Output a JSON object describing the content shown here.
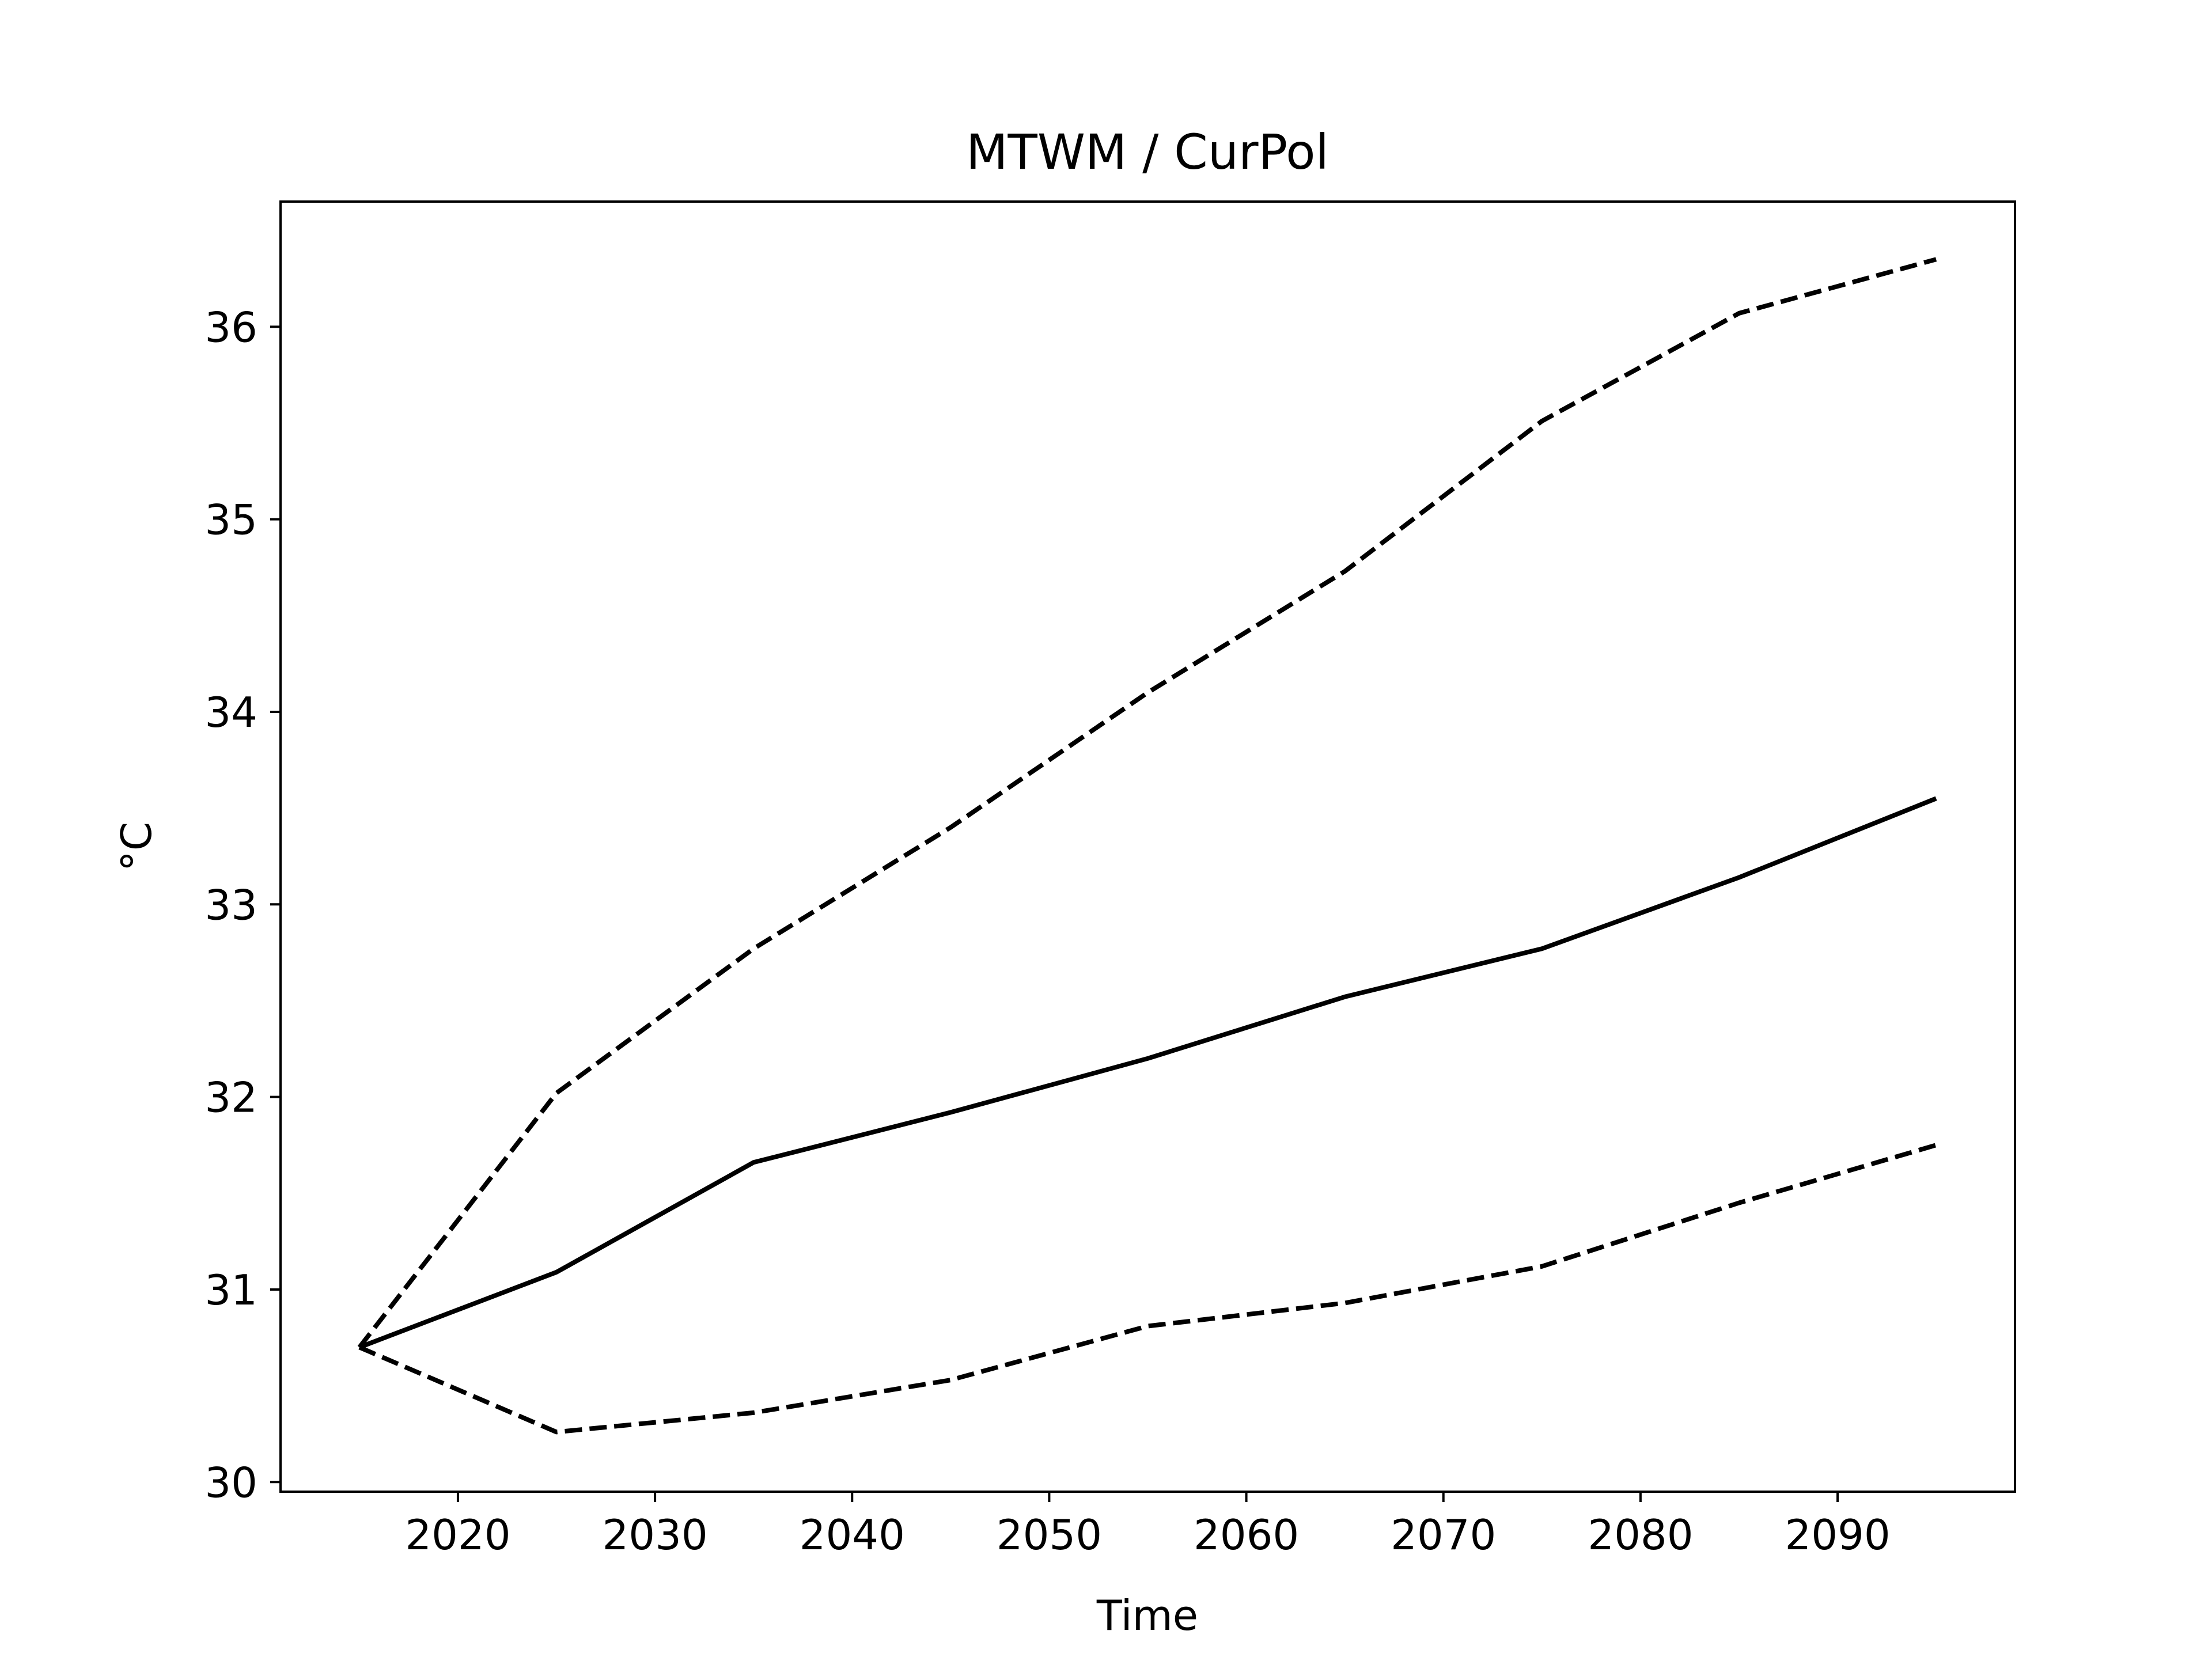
{
  "chart_data": {
    "type": "line",
    "title": "MTWM / CurPol",
    "xlabel": "Time",
    "ylabel": "°C",
    "xlim": [
      2011,
      2099
    ],
    "ylim": [
      29.95,
      36.65
    ],
    "xticks": [
      2020,
      2030,
      2040,
      2050,
      2060,
      2070,
      2080,
      2090
    ],
    "yticks": [
      30,
      31,
      32,
      33,
      34,
      35,
      36
    ],
    "grid": false,
    "legend": "none",
    "line_color": "#000000",
    "x": [
      2015,
      2025,
      2035,
      2045,
      2055,
      2065,
      2075,
      2085,
      2095
    ],
    "series": [
      {
        "style": "solid",
        "values": [
          30.7,
          31.09,
          31.66,
          31.92,
          32.2,
          32.52,
          32.77,
          33.14,
          33.55
        ]
      },
      {
        "style": "dashed",
        "values": [
          30.7,
          32.02,
          32.77,
          33.4,
          34.1,
          34.73,
          35.51,
          36.07,
          36.35
        ]
      },
      {
        "style": "dashed",
        "values": [
          30.7,
          30.26,
          30.36,
          30.53,
          30.81,
          30.93,
          31.12,
          31.45,
          31.75
        ]
      }
    ]
  }
}
